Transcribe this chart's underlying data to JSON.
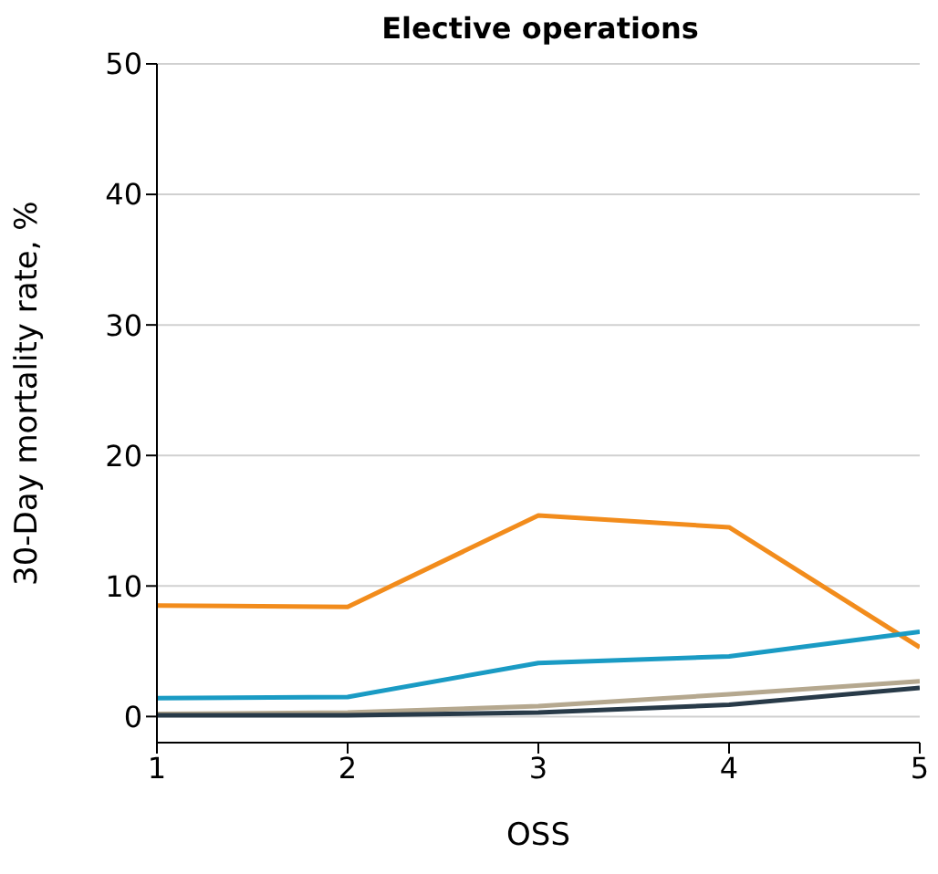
{
  "chart_data": {
    "type": "line",
    "title": "Elective operations",
    "xlabel": "OSS",
    "ylabel": "30-Day mortality rate, %",
    "x": [
      1,
      2,
      3,
      4,
      5
    ],
    "xlim": [
      1,
      5
    ],
    "xticks": [
      1,
      2,
      3,
      4,
      5
    ],
    "ylim": [
      -2,
      50
    ],
    "yticks": [
      0,
      10,
      20,
      30,
      40,
      50
    ],
    "grid": "y",
    "legend": false,
    "marker": "none",
    "line_style": "solid",
    "series": [
      {
        "color": "#f28c1c",
        "values": [
          8.5,
          8.4,
          15.4,
          14.5,
          5.3
        ]
      },
      {
        "color": "#1a9bc4",
        "values": [
          1.4,
          1.5,
          4.1,
          4.6,
          6.5
        ]
      },
      {
        "color": "#b5a88f",
        "values": [
          0.2,
          0.3,
          0.8,
          1.7,
          2.7
        ]
      },
      {
        "color": "#283a48",
        "values": [
          0.1,
          0.1,
          0.3,
          0.9,
          2.2
        ]
      }
    ]
  }
}
